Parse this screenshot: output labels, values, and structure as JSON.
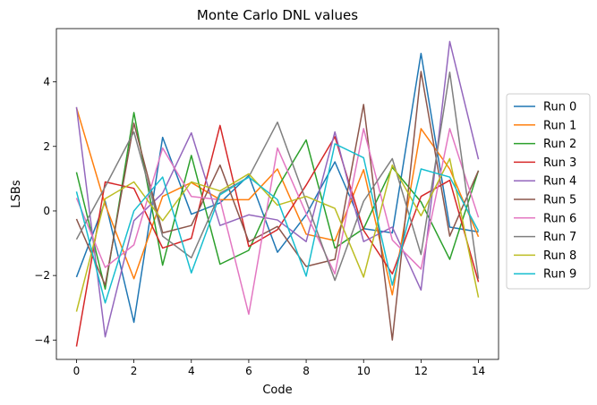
{
  "chart_data": {
    "type": "line",
    "title": "Monte Carlo DNL values",
    "xlabel": "Code",
    "ylabel": "LSBs",
    "x": [
      0,
      1,
      2,
      3,
      4,
      5,
      6,
      7,
      8,
      9,
      10,
      11,
      12,
      13,
      14
    ],
    "xlim": [
      -0.7,
      14.7
    ],
    "ylim": [
      -4.6,
      5.65
    ],
    "xticks": [
      0,
      2,
      4,
      6,
      8,
      10,
      12,
      14
    ],
    "yticks": [
      -4,
      -2,
      0,
      2,
      4
    ],
    "grid": false,
    "legend_position": "right, outside plot",
    "series": [
      {
        "name": "Run 0",
        "color": "#1f77b4",
        "values": [
          -2.05,
          0.3,
          -3.45,
          2.28,
          -0.1,
          0.25,
          1.1,
          -1.28,
          -0.12,
          1.52,
          -0.55,
          -0.68,
          4.88,
          -0.5,
          -0.65
        ]
      },
      {
        "name": "Run 1",
        "color": "#ff7f0e",
        "values": [
          3.2,
          0.2,
          -2.1,
          0.45,
          0.88,
          0.35,
          0.35,
          1.3,
          -0.72,
          -0.92,
          1.28,
          -2.6,
          2.55,
          1.3,
          -0.8
        ]
      },
      {
        "name": "Run 2",
        "color": "#2ca02c",
        "values": [
          1.2,
          -2.42,
          3.05,
          -1.68,
          1.72,
          -1.65,
          -1.22,
          0.72,
          2.2,
          -1.15,
          -0.55,
          1.35,
          0.28,
          -1.5,
          1.25
        ]
      },
      {
        "name": "Run 3",
        "color": "#d62728",
        "values": [
          -4.2,
          0.9,
          0.7,
          -1.15,
          -0.85,
          2.65,
          -1.1,
          -0.58,
          0.8,
          2.3,
          -0.6,
          -1.95,
          0.45,
          0.95,
          -2.2
        ]
      },
      {
        "name": "Run 4",
        "color": "#9467bd",
        "values": [
          3.22,
          -3.9,
          -0.3,
          0.55,
          2.42,
          -0.45,
          -0.12,
          -0.28,
          -0.95,
          2.45,
          -0.95,
          -0.5,
          -2.45,
          5.25,
          1.6
        ]
      },
      {
        "name": "Run 5",
        "color": "#8c564b",
        "values": [
          -0.25,
          -2.3,
          2.72,
          -0.68,
          -0.45,
          1.42,
          -0.95,
          -0.48,
          -1.72,
          -1.5,
          3.3,
          -4.0,
          4.32,
          -0.78,
          1.25
        ]
      },
      {
        "name": "Run 6",
        "color": "#e377c2",
        "values": [
          0.4,
          -1.75,
          -1.05,
          1.95,
          0.45,
          0.35,
          -3.2,
          1.95,
          -0.08,
          -1.95,
          2.55,
          -0.9,
          -1.8,
          2.55,
          -0.2
        ]
      },
      {
        "name": "Run 7",
        "color": "#7f7f7f",
        "values": [
          -0.88,
          0.75,
          2.45,
          -0.78,
          -1.45,
          0.55,
          1.05,
          2.75,
          0.3,
          -2.15,
          0.3,
          1.62,
          -1.35,
          4.3,
          -2.1
        ]
      },
      {
        "name": "Run 8",
        "color": "#bcbd22",
        "values": [
          -3.12,
          0.38,
          0.9,
          -0.3,
          0.9,
          0.62,
          1.15,
          0.18,
          0.45,
          0.08,
          -2.05,
          1.42,
          -0.15,
          1.62,
          -2.68
        ]
      },
      {
        "name": "Run 9",
        "color": "#17becf",
        "values": [
          0.6,
          -2.85,
          0.0,
          1.05,
          -1.92,
          0.5,
          1.05,
          0.35,
          -2.02,
          2.08,
          1.65,
          -2.3,
          1.3,
          1.05,
          -0.62
        ]
      }
    ]
  }
}
